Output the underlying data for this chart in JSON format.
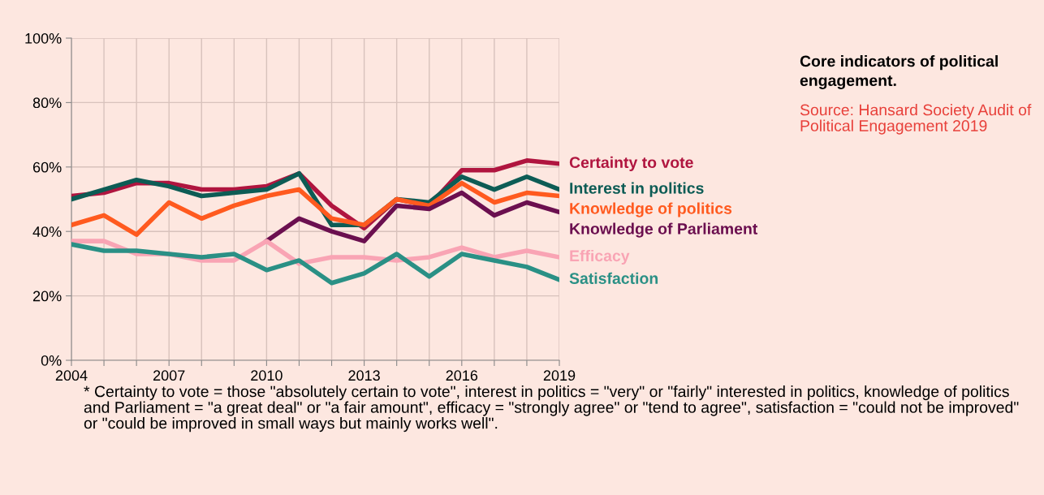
{
  "chart_data": {
    "type": "line",
    "title": "Core indicators of political engagement.",
    "x": [
      2004,
      2005,
      2006,
      2007,
      2008,
      2009,
      2010,
      2011,
      2012,
      2013,
      2014,
      2015,
      2016,
      2017,
      2018,
      2019
    ],
    "series": [
      {
        "name": "Certainty to vote",
        "color": "#b0153f",
        "values": [
          51,
          52,
          55,
          55,
          53,
          53,
          54,
          58,
          48,
          41,
          50,
          48,
          59,
          59,
          62,
          61
        ]
      },
      {
        "name": "Interest in politics",
        "color": "#0d5c55",
        "values": [
          50,
          53,
          56,
          54,
          51,
          52,
          53,
          58,
          42,
          42,
          50,
          49,
          57,
          53,
          57,
          53
        ]
      },
      {
        "name": "Knowledge of politics",
        "color": "#ff5a1f",
        "values": [
          42,
          45,
          39,
          49,
          44,
          48,
          51,
          53,
          44,
          42,
          50,
          48,
          55,
          49,
          52,
          51
        ]
      },
      {
        "name": "Knowledge of Parliament",
        "color": "#6b0f4f",
        "values": [
          null,
          null,
          null,
          null,
          null,
          null,
          37,
          44,
          40,
          37,
          48,
          47,
          52,
          45,
          49,
          46
        ]
      },
      {
        "name": "Efficacy",
        "color": "#f9a4b4",
        "values": [
          37,
          37,
          33,
          33,
          31,
          31,
          37,
          30,
          32,
          32,
          31,
          32,
          35,
          32,
          34,
          32
        ]
      },
      {
        "name": "Satisfaction",
        "color": "#2a9085",
        "values": [
          36,
          34,
          34,
          33,
          32,
          33,
          28,
          31,
          24,
          27,
          33,
          26,
          33,
          31,
          29,
          25
        ]
      }
    ],
    "xlim": [
      2004,
      2019
    ],
    "xticks": [
      2004,
      {
        "value": 2005,
        "label": null
      },
      {
        "value": 2006,
        "label": null
      },
      2007,
      {
        "value": 2008,
        "label": null
      },
      {
        "value": 2009,
        "label": null
      },
      2010,
      {
        "value": 2011,
        "label": null
      },
      {
        "value": 2012,
        "label": null
      },
      2013,
      {
        "value": 2014,
        "label": null
      },
      {
        "value": 2015,
        "label": null
      },
      2016,
      {
        "value": 2017,
        "label": null
      },
      {
        "value": 2018,
        "label": null
      },
      2019
    ],
    "ylim": [
      0,
      100
    ],
    "yticks": [
      {
        "value": 0,
        "label": "0%"
      },
      {
        "value": 20,
        "label": "20%"
      },
      {
        "value": 40,
        "label": "40%"
      },
      {
        "value": 60,
        "label": "60%"
      },
      {
        "value": 80,
        "label": "80%"
      },
      {
        "value": 100,
        "label": "100%"
      }
    ],
    "grid": true,
    "legend": false,
    "marker": "none",
    "line_style": "solid",
    "annotations": [
      "Source: Hansard Society Audit of Political Engagement 2019",
      "* Certainty to vote = those \"absolutely certain to vote\", interest in politics = \"very\" or \"fairly\" interested in politics, knowledge of politics and Parliament = \"a great deal\" or \"a fair amount\", efficacy = \"strongly agree\" or \"tend to agree\", satisfaction = \"could not be improved\" or \"could be improved in small ways but mainly works well\"."
    ]
  }
}
